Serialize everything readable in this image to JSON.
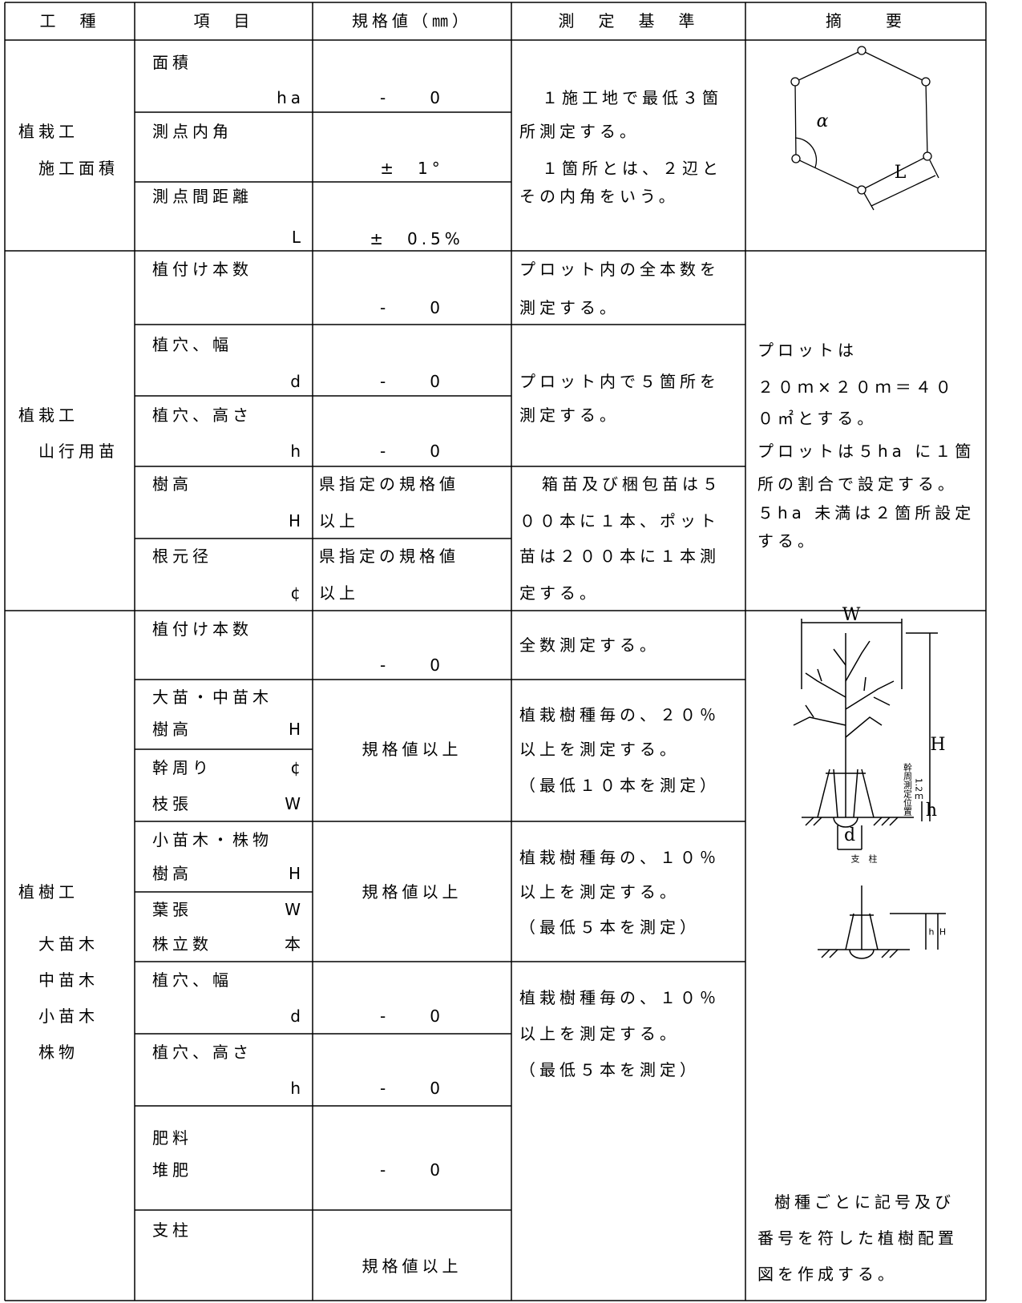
{
  "header": [
    "工　種",
    "項　目",
    "規格値（㎜）",
    "測　定　基　準",
    "摘　　要"
  ],
  "sections": [
    {
      "work_type": [
        "植栽工",
        "施工面積"
      ],
      "items": [
        {
          "name": "面積",
          "symbol": "ha",
          "spec": "-　　0"
        },
        {
          "name": "測点内角",
          "spec": "±　1°"
        },
        {
          "name": "測点間距離",
          "symbol": "L",
          "spec": "±　0.5%"
        }
      ],
      "criteria": [
        [
          "１施工地で最低３箇",
          "所測定する。",
          "１箇所とは、２辺と",
          "その内角をいう。"
        ]
      ],
      "summary": {
        "figure_labels": [
          "α",
          "L"
        ]
      }
    },
    {
      "work_type": [
        "植栽工",
        "山行用苗"
      ],
      "items": [
        {
          "name": "植付け本数",
          "spec": "-　　0"
        },
        {
          "name": "植穴、幅",
          "symbol": "d",
          "spec": "-　　0"
        },
        {
          "name": "植穴、高さ",
          "symbol": "h",
          "spec": "-　　0"
        },
        {
          "name": "樹高",
          "symbol": "H",
          "spec": [
            "県指定の規格値",
            "以上"
          ]
        },
        {
          "name": "根元径",
          "symbol": "¢",
          "spec": [
            "県指定の規格値",
            "以上"
          ]
        }
      ],
      "criteria": [
        [
          "プロット内の全本数を",
          "測定する。"
        ],
        [
          "プロット内で５箇所を",
          "測定する。"
        ],
        [
          "箱苗及び梱包苗は５",
          "００本に１本、ポット",
          "苗は２００本に１本測",
          "定する。"
        ]
      ],
      "summary": {
        "text": [
          "プロットは",
          "２０ｍ×２０ｍ＝４０",
          "０㎡とする。",
          "プロットは５ha に１箇",
          "所の割合で設定する。",
          "５ha 未満は２箇所設定",
          "する。"
        ]
      }
    },
    {
      "work_type": [
        "植樹工",
        "大苗木",
        "中苗木",
        "小苗木",
        "株物"
      ],
      "items": [
        {
          "name": "植付け本数",
          "spec": "-　　0"
        },
        {
          "name": "大苗・中苗木",
          "measures": [
            [
              "樹高",
              "H"
            ],
            [
              "幹周り",
              "¢"
            ],
            [
              "枝張",
              "W"
            ]
          ],
          "spec": "規格値以上"
        },
        {
          "name": "小苗木・株物",
          "measures": [
            [
              "樹高",
              "H"
            ],
            [
              "葉張",
              "W"
            ],
            [
              "株立数",
              "本"
            ]
          ],
          "spec": "規格値以上"
        },
        {
          "name": "植穴、幅",
          "symbol": "d",
          "spec": "-　　0"
        },
        {
          "name": "植穴、高さ",
          "symbol": "h",
          "spec": "-　　0"
        },
        {
          "name": [
            "肥料",
            "堆肥"
          ],
          "spec": "-　　0"
        },
        {
          "name": "支柱",
          "spec": "規格値以上"
        }
      ],
      "criteria": [
        [
          "全数測定する。"
        ],
        [
          "植栽樹種毎の、２０％",
          "以上を測定する。",
          "（最低１０本を測定）"
        ],
        [
          "植栽樹種毎の、１０％",
          "以上を測定する。",
          "（最低５本を測定）"
        ],
        [
          "植栽樹種毎の、１０％",
          "以上を測定する。",
          "（最低５本を測定）"
        ]
      ],
      "summary": {
        "figure_labels": [
          "W",
          "H",
          "幹周測定位置",
          "1.2ｍ",
          "h",
          "d",
          "支　柱",
          "h",
          "H"
        ],
        "text": [
          "樹種ごとに記号及び",
          "番号を符した植樹配置",
          "図を作成する。"
        ]
      }
    }
  ]
}
